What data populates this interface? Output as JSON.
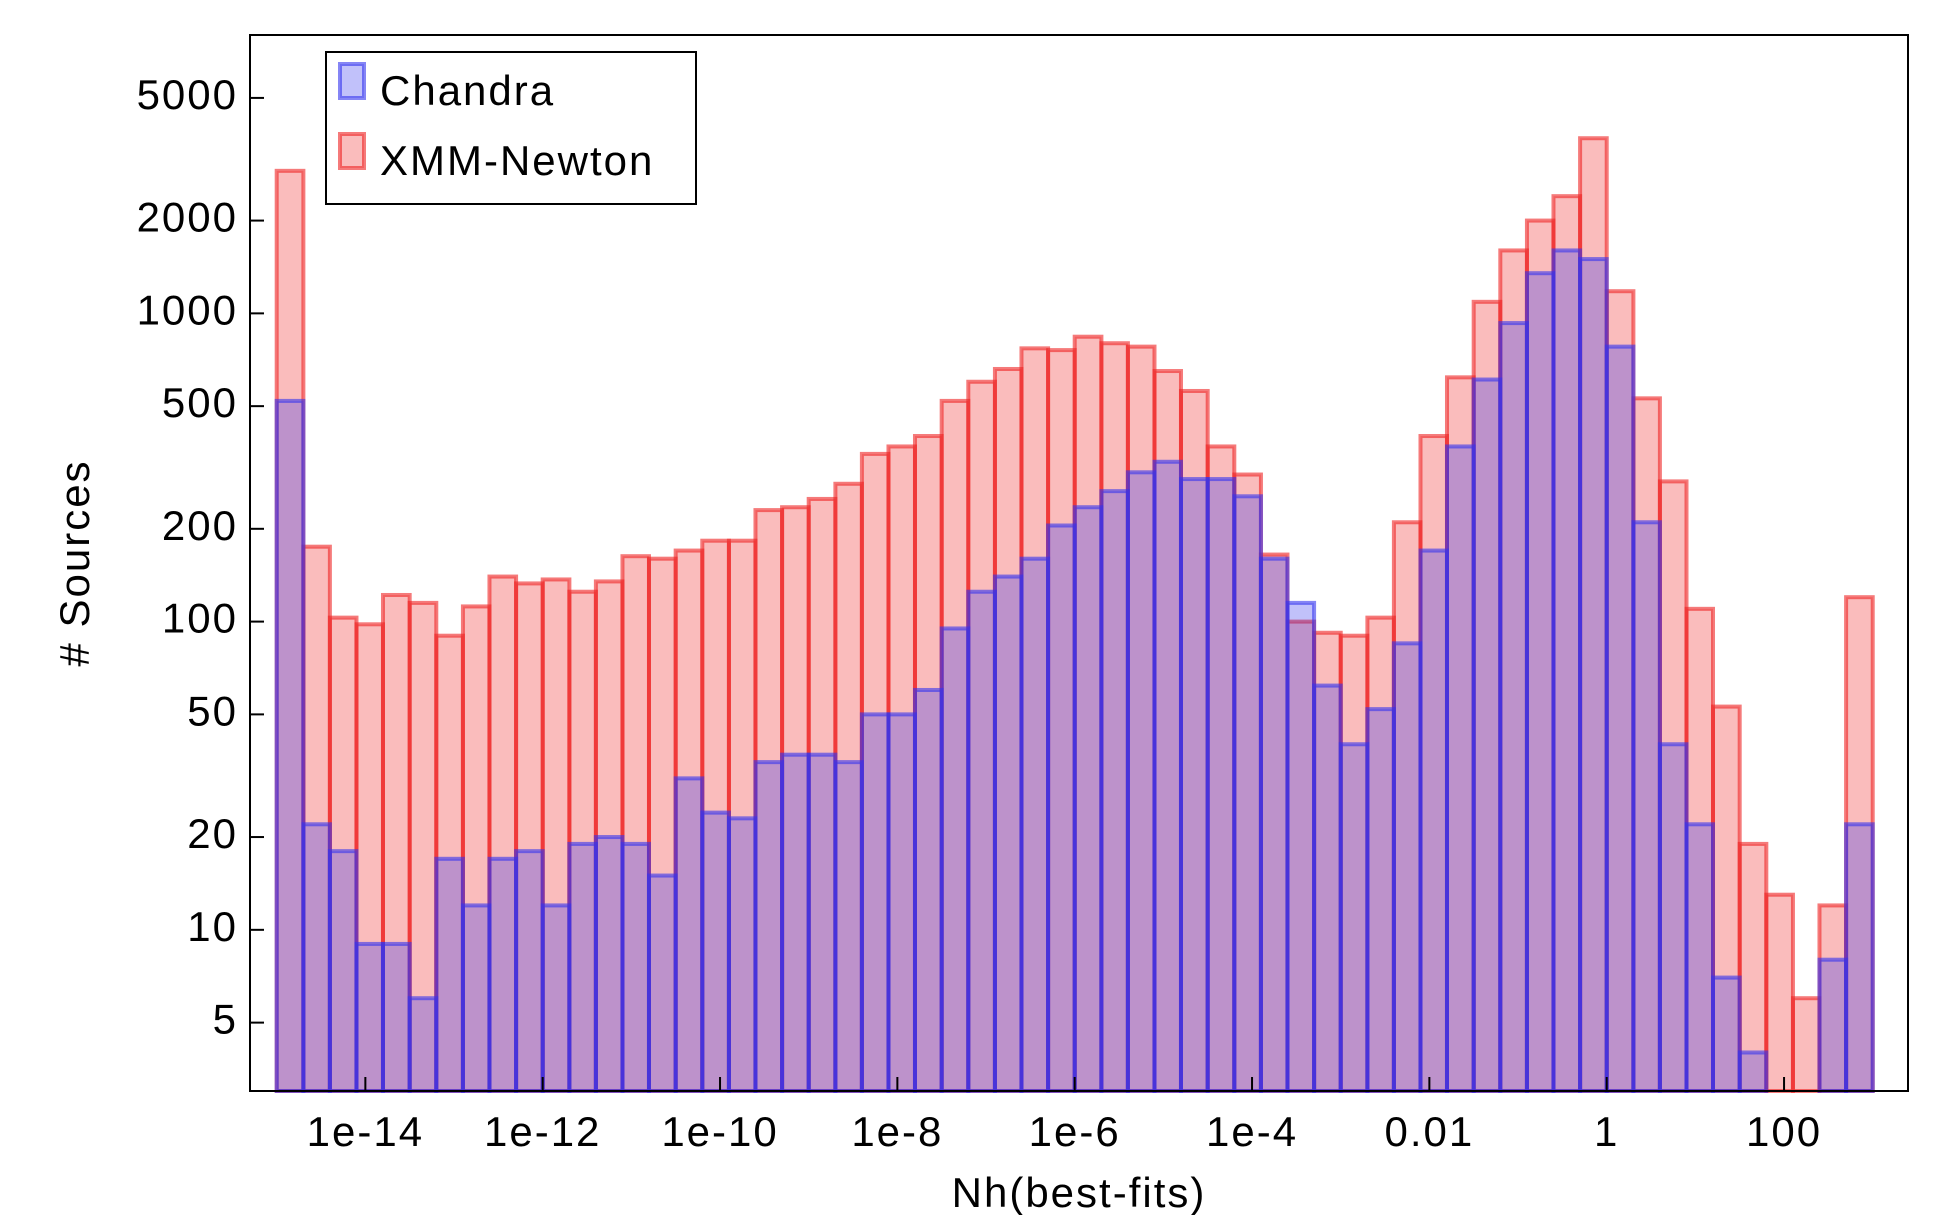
{
  "chart_data": {
    "type": "histogram",
    "xlabel": "Nh(best-fits)",
    "ylabel": "# Sources",
    "xscale": "log",
    "yscale": "log",
    "grid": false,
    "legend": "upper left",
    "bins": [
      1e-15,
      2e-15,
      3.98e-15,
      7.94e-15,
      1.58e-14,
      3.16e-14,
      6.31e-14,
      1.26e-13,
      2.51e-13,
      5.01e-13,
      1e-12,
      2e-12,
      3.98e-12,
      7.94e-12,
      1.58e-11,
      3.16e-11,
      6.31e-11,
      1.26e-10,
      2.51e-10,
      5.01e-10,
      1e-09,
      2e-09,
      3.98e-09,
      7.94e-09,
      1.58e-08,
      3.16e-08,
      6.31e-08,
      1.26e-07,
      2.51e-07,
      5.01e-07,
      1e-06,
      2e-06,
      3.98e-06,
      7.94e-06,
      1.58e-05,
      3.16e-05,
      6.31e-05,
      0.000126,
      0.000251,
      0.000501,
      0.001,
      0.002,
      0.00398,
      0.00794,
      0.0158,
      0.0316,
      0.0631,
      0.126,
      0.251,
      0.501,
      1,
      2.0,
      3.98,
      7.94,
      15.8,
      31.6,
      63.1,
      126,
      251,
      501,
      1000
    ],
    "series": [
      {
        "name": "XMM-Newton",
        "color": "#ee2222",
        "values": [
          2900,
          175,
          103,
          98,
          122,
          115,
          90,
          112,
          140,
          133,
          137,
          125,
          135,
          163,
          160,
          170,
          183,
          183,
          230,
          235,
          250,
          280,
          350,
          370,
          400,
          520,
          600,
          660,
          770,
          760,
          840,
          800,
          780,
          650,
          560,
          370,
          300,
          165,
          100,
          92,
          90,
          103,
          210,
          400,
          620,
          1090,
          1600,
          2000,
          2400,
          3700,
          1180,
          530,
          285,
          110,
          53,
          19,
          13,
          6,
          12,
          120
        ]
      },
      {
        "name": "Chandra",
        "color": "#3333ee",
        "values": [
          520,
          22,
          18,
          9,
          9,
          6,
          17,
          12,
          17,
          18,
          12,
          19,
          20,
          19,
          15,
          31,
          24,
          23,
          35,
          37,
          37,
          35,
          50,
          50,
          60,
          95,
          125,
          140,
          160,
          205,
          235,
          265,
          305,
          330,
          290,
          290,
          255,
          160,
          115,
          62,
          40,
          52,
          85,
          170,
          370,
          610,
          930,
          1350,
          1600,
          1500,
          780,
          210,
          40,
          22,
          7,
          4,
          0,
          0,
          8,
          22
        ]
      }
    ],
    "xlim": [
      5e-16,
      2500
    ],
    "ylim": [
      3,
      8000
    ],
    "xticks": [
      {
        "value": 1e-14,
        "label": "1e-14"
      },
      {
        "value": 1e-12,
        "label": "1e-12"
      },
      {
        "value": 1e-10,
        "label": "1e-10"
      },
      {
        "value": 1e-08,
        "label": "1e-8"
      },
      {
        "value": 1e-06,
        "label": "1e-6"
      },
      {
        "value": 0.0001,
        "label": "1e-4"
      },
      0.01,
      1,
      100
    ],
    "yticks": [
      5,
      10,
      20,
      50,
      100,
      200,
      500,
      1000,
      2000,
      5000
    ]
  }
}
